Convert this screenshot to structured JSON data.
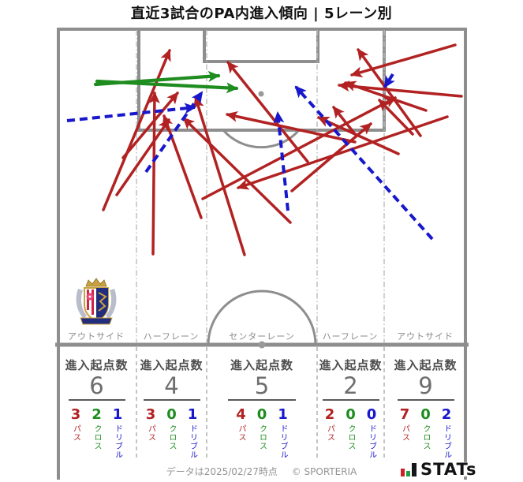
{
  "title": "直近3試合のPA内進入傾向 | 5レーン別",
  "stats": {
    "header": "進入起点数",
    "legend": {
      "pass": "パス",
      "cross": "クロス",
      "dribble": "ドリブル"
    },
    "lanes": [
      {
        "label": "アウトサイド",
        "total": "6",
        "pass": "3",
        "cross": "2",
        "dribble": "1"
      },
      {
        "label": "ハーフレーン",
        "total": "4",
        "pass": "3",
        "cross": "0",
        "dribble": "1"
      },
      {
        "label": "センターレーン",
        "total": "5",
        "pass": "4",
        "cross": "0",
        "dribble": "1"
      },
      {
        "label": "ハーフレーン",
        "total": "2",
        "pass": "2",
        "cross": "0",
        "dribble": "0"
      },
      {
        "label": "アウトサイド",
        "total": "9",
        "pass": "7",
        "cross": "0",
        "dribble": "2"
      }
    ]
  },
  "footer": {
    "note": "データは2025/02/27時点",
    "copyright": "© SPORTERIA",
    "brand": "STATs"
  },
  "colors": {
    "pass": "#B22222",
    "cross": "#1E8C1E",
    "dribble": "#1717CC",
    "pitch_line": "#8E8E8E",
    "lane_divider": "#BBBBBB",
    "text_gray": "#8A8A8A"
  },
  "chart_data": {
    "type": "pitch-arrow-diagram",
    "title": "直近3試合のPA内進入傾向 | 5レーン別",
    "legend": [
      {
        "key": "pass",
        "label": "パス",
        "style": "solid red arrow"
      },
      {
        "key": "cross",
        "label": "クロス",
        "style": "solid green arrow"
      },
      {
        "key": "dribble",
        "label": "ドリブル",
        "style": "dashed blue arrow"
      }
    ],
    "lane_totals": {
      "categories": [
        "アウトサイド",
        "ハーフレーン",
        "センターレーン",
        "ハーフレーン",
        "アウトサイド"
      ],
      "values": [
        6,
        4,
        5,
        2,
        9
      ]
    },
    "arrows": [
      {
        "kind": "pass",
        "from": [
          131,
          266
        ],
        "to": [
          215,
          64
        ]
      },
      {
        "kind": "pass",
        "from": [
          194,
          322
        ],
        "to": [
          196,
          118
        ]
      },
      {
        "kind": "pass",
        "from": [
          156,
          200
        ],
        "to": [
          225,
          118
        ]
      },
      {
        "kind": "pass",
        "from": [
          148,
          247
        ],
        "to": [
          214,
          152
        ]
      },
      {
        "kind": "pass",
        "from": [
          255,
          276
        ],
        "to": [
          208,
          147
        ]
      },
      {
        "kind": "pass",
        "from": [
          257,
          252
        ],
        "to": [
          501,
          124
        ]
      },
      {
        "kind": "pass",
        "from": [
          310,
          323
        ],
        "to": [
          248,
          124
        ]
      },
      {
        "kind": "pass",
        "from": [
          368,
          282
        ],
        "to": [
          233,
          150
        ]
      },
      {
        "kind": "pass",
        "from": [
          370,
          242
        ],
        "to": [
          470,
          157
        ]
      },
      {
        "kind": "pass",
        "from": [
          390,
          205
        ],
        "to": [
          289,
          79
        ]
      },
      {
        "kind": "pass",
        "from": [
          450,
          180
        ],
        "to": [
          288,
          145
        ]
      },
      {
        "kind": "pass",
        "from": [
          450,
          170
        ],
        "to": [
          423,
          136
        ]
      },
      {
        "kind": "pass",
        "from": [
          577,
          57
        ],
        "to": [
          446,
          95
        ]
      },
      {
        "kind": "pass",
        "from": [
          533,
          172
        ],
        "to": [
          454,
          63
        ]
      },
      {
        "kind": "pass",
        "from": [
          540,
          140
        ],
        "to": [
          438,
          105
        ]
      },
      {
        "kind": "pass",
        "from": [
          585,
          122
        ],
        "to": [
          430,
          108
        ]
      },
      {
        "kind": "pass",
        "from": [
          567,
          148
        ],
        "to": [
          302,
          238
        ]
      },
      {
        "kind": "pass",
        "from": [
          505,
          195
        ],
        "to": [
          404,
          149
        ]
      },
      {
        "kind": "pass",
        "from": [
          523,
          170
        ],
        "to": [
          481,
          127
        ]
      },
      {
        "kind": "cross",
        "from": [
          121,
          107
        ],
        "to": [
          277,
          96
        ]
      },
      {
        "kind": "cross",
        "from": [
          123,
          103
        ],
        "to": [
          300,
          112
        ]
      },
      {
        "kind": "dribble",
        "from": [
          85,
          153
        ],
        "to": [
          247,
          136
        ]
      },
      {
        "kind": "dribble",
        "from": [
          185,
          218
        ],
        "to": [
          256,
          117
        ]
      },
      {
        "kind": "dribble",
        "from": [
          365,
          267
        ],
        "to": [
          352,
          143
        ]
      },
      {
        "kind": "dribble",
        "from": [
          548,
          303
        ],
        "to": [
          375,
          110
        ]
      },
      {
        "kind": "dribble",
        "from": [
          498,
          94
        ],
        "to": [
          488,
          110
        ]
      }
    ]
  }
}
